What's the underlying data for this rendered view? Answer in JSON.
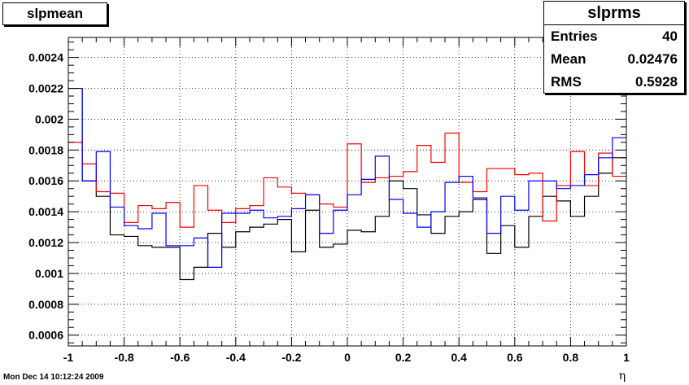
{
  "title_box": {
    "text": "slpmean"
  },
  "stats_box": {
    "title": "slprms",
    "rows": [
      {
        "label": "Entries",
        "value": "40"
      },
      {
        "label": "Mean",
        "value": "0.02476"
      },
      {
        "label": "RMS",
        "value": "0.5928"
      }
    ]
  },
  "footer": {
    "date": "Mon Dec 14 10:12:24 2009"
  },
  "chart_data": {
    "type": "step-histogram",
    "title": "slpmean",
    "xlabel": "η",
    "ylabel": "",
    "xlim": [
      -1,
      1
    ],
    "ylim": [
      0.00053,
      0.00253
    ],
    "grid": true,
    "bins": 40,
    "x_ticks": [
      -1,
      -0.8,
      -0.6,
      -0.4,
      -0.2,
      0,
      0.2,
      0.4,
      0.6,
      0.8,
      1
    ],
    "x_tick_labels": [
      "-1",
      "-0.8",
      "-0.6",
      "-0.4",
      "-0.2",
      "0",
      "0.2",
      "0.4",
      "0.6",
      "0.8",
      "1"
    ],
    "y_ticks": [
      0.0006,
      0.0008,
      0.001,
      0.0012,
      0.0014,
      0.0016,
      0.0018,
      0.002,
      0.0022,
      0.0024
    ],
    "y_tick_labels": [
      "0.0006",
      "0.0008",
      "0.001",
      "0.0012",
      "0.0014",
      "0.0016",
      "0.0018",
      "0.002",
      "0.0022",
      "0.0024"
    ],
    "series": [
      {
        "color": "#000000",
        "values": [
          0.0022,
          0.0016,
          0.0015,
          0.00125,
          0.00124,
          0.00118,
          0.00117,
          0.00117,
          0.00096,
          0.00104,
          0.00126,
          0.00117,
          0.00127,
          0.0013,
          0.00132,
          0.00135,
          0.00114,
          0.00141,
          0.00117,
          0.00119,
          0.00128,
          0.00127,
          0.00137,
          0.0016,
          0.00155,
          0.00138,
          0.00126,
          0.00137,
          0.0014,
          0.00148,
          0.00113,
          0.00131,
          0.00117,
          0.00137,
          0.0015,
          0.00147,
          0.00137,
          0.0015,
          0.00165,
          0.00175
        ]
      },
      {
        "color": "#ff0000",
        "values": [
          0.00185,
          0.00171,
          0.00153,
          0.00152,
          0.00133,
          0.00144,
          0.00142,
          0.00146,
          0.0013,
          0.00157,
          0.00141,
          0.00133,
          0.00142,
          0.00144,
          0.00162,
          0.00156,
          0.00152,
          0.00151,
          0.00145,
          0.00143,
          0.00184,
          0.00159,
          0.00162,
          0.00163,
          0.00166,
          0.00183,
          0.00172,
          0.00191,
          0.00159,
          0.00153,
          0.00168,
          0.00168,
          0.00164,
          0.00165,
          0.00134,
          0.00157,
          0.00179,
          0.00157,
          0.00178,
          0.00163
        ]
      },
      {
        "color": "#0000ff",
        "values": [
          0.0022,
          0.0016,
          0.00179,
          0.00143,
          0.00131,
          0.00129,
          0.00139,
          0.00118,
          0.00118,
          0.00123,
          0.00104,
          0.00139,
          0.00139,
          0.00141,
          0.00136,
          0.00137,
          0.00142,
          0.00151,
          0.00126,
          0.00141,
          0.00151,
          0.00161,
          0.00176,
          0.00148,
          0.00139,
          0.0013,
          0.0014,
          0.00159,
          0.00163,
          0.00149,
          0.00126,
          0.0015,
          0.00141,
          0.0016,
          0.0016,
          0.00155,
          0.00157,
          0.00164,
          0.00175,
          0.00188
        ]
      }
    ]
  }
}
